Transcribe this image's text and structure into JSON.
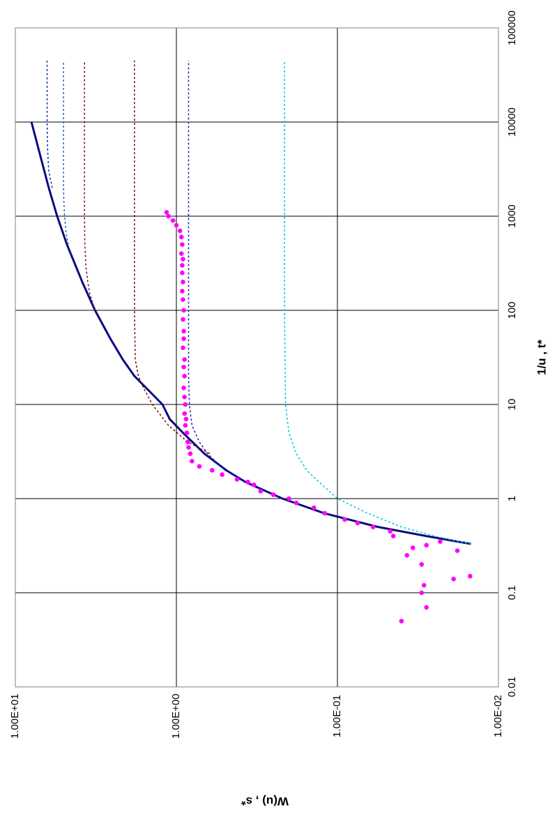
{
  "chart_data": {
    "type": "scatter",
    "orientation": "rotated 90 degrees clockwise (x axis vertical on right, W(u) axis horizontal on bottom)",
    "title": "",
    "xlabel": "1/u , t*",
    "ylabel": "W(u) , s*",
    "x_scale": "log",
    "y_scale": "log",
    "xlim": [
      0.01,
      100000
    ],
    "ylim": [
      0.01,
      10
    ],
    "x_tick_labels": [
      "0.01",
      "0.1",
      "1",
      "10",
      "100",
      "1000",
      "10000",
      "100000"
    ],
    "y_tick_labels": [
      "1.00E-02",
      "1.00E-01",
      "1.00E+00",
      "1.00E+01"
    ],
    "grid": true,
    "legend": "none",
    "colors": {
      "theis": "#0a0a80",
      "observed": "#ff00ff",
      "type_curves": [
        "#00c8e0",
        "#2020c0",
        "#800000",
        "#800060",
        "#3060d0",
        "#1030a0"
      ]
    },
    "series": [
      {
        "style": "solid",
        "color": "#0a0a80",
        "x": [
          0.33,
          0.4,
          0.5,
          0.7,
          1,
          1.5,
          2,
          3,
          5,
          7,
          10,
          20,
          30,
          50,
          100,
          200,
          500,
          1000,
          2000,
          5000,
          10000
        ],
        "y": [
          0.0148,
          0.028,
          0.056,
          0.121,
          0.219,
          0.372,
          0.49,
          0.67,
          0.91,
          1.1,
          1.22,
          1.82,
          2.15,
          2.57,
          3.2,
          3.84,
          4.78,
          5.5,
          6.2,
          7.14,
          7.94
        ]
      },
      {
        "style": "dotted",
        "color": "#00c8e0",
        "x": [
          0.33,
          0.4,
          0.5,
          0.7,
          1,
          1.5,
          2,
          3,
          5,
          10,
          100,
          1000,
          10000,
          45000
        ],
        "y": [
          0.0148,
          0.025,
          0.04,
          0.065,
          0.1,
          0.13,
          0.155,
          0.18,
          0.2,
          0.21,
          0.213,
          0.213,
          0.213,
          0.213
        ]
      },
      {
        "style": "dotted",
        "color": "#2020c0",
        "x": [
          1,
          1.5,
          2,
          3,
          4,
          6,
          10,
          20,
          100,
          1000,
          10000,
          45000
        ],
        "y": [
          0.219,
          0.372,
          0.5,
          0.64,
          0.72,
          0.8,
          0.83,
          0.84,
          0.84,
          0.84,
          0.84,
          0.84
        ]
      },
      {
        "style": "dotted",
        "color": "#800000",
        "x": [
          3,
          4,
          6,
          10,
          15,
          20,
          30,
          100,
          1000,
          10000,
          45000
        ],
        "y": [
          0.62,
          0.85,
          1.12,
          1.41,
          1.6,
          1.72,
          1.8,
          1.82,
          1.82,
          1.82,
          1.82
        ]
      },
      {
        "style": "dotted",
        "color": "#800060",
        "x": [
          100,
          150,
          200,
          300,
          500,
          1000,
          2000,
          5000,
          10000,
          45000
        ],
        "y": [
          3.2,
          3.45,
          3.55,
          3.65,
          3.7,
          3.72,
          3.72,
          3.72,
          3.72,
          3.72
        ]
      },
      {
        "style": "dotted",
        "color": "#3060d0",
        "x": [
          500,
          700,
          1000,
          1500,
          2000,
          3000,
          5000,
          10000,
          45000
        ],
        "y": [
          4.7,
          4.85,
          4.95,
          5.0,
          5.02,
          5.02,
          5.02,
          5.02,
          5.02
        ]
      },
      {
        "style": "dotted",
        "color": "#1030a0",
        "x": [
          2000,
          3000,
          5000,
          10000,
          45000
        ],
        "y": [
          5.9,
          6.2,
          6.3,
          6.35,
          6.35
        ]
      },
      {
        "style": "markers",
        "color": "#ff00ff",
        "x": [
          0.05,
          0.07,
          0.1,
          0.12,
          0.14,
          0.15,
          0.2,
          0.25,
          0.28,
          0.3,
          0.32,
          0.35,
          0.4,
          0.45,
          0.5,
          0.55,
          0.6,
          0.7,
          0.8,
          0.9,
          1,
          1.1,
          1.2,
          1.4,
          1.5,
          1.6,
          1.8,
          2,
          2.2,
          2.5,
          3,
          3.5,
          4,
          5,
          6,
          7,
          8,
          10,
          12,
          15,
          20,
          25,
          30,
          40,
          50,
          60,
          80,
          100,
          130,
          160,
          200,
          250,
          300,
          350,
          400,
          500,
          600,
          700,
          800,
          900,
          1000,
          1100
        ],
        "y": [
          0.04,
          0.028,
          0.03,
          0.029,
          0.019,
          0.015,
          0.03,
          0.037,
          0.018,
          0.034,
          0.028,
          0.023,
          0.045,
          0.047,
          0.06,
          0.075,
          0.09,
          0.12,
          0.14,
          0.18,
          0.2,
          0.25,
          0.3,
          0.33,
          0.36,
          0.42,
          0.52,
          0.6,
          0.72,
          0.8,
          0.82,
          0.84,
          0.85,
          0.86,
          0.88,
          0.87,
          0.89,
          0.88,
          0.89,
          0.9,
          0.89,
          0.9,
          0.89,
          0.91,
          0.9,
          0.9,
          0.91,
          0.9,
          0.91,
          0.92,
          0.91,
          0.92,
          0.92,
          0.91,
          0.93,
          0.92,
          0.93,
          0.95,
          1.0,
          1.05,
          1.12,
          1.15
        ]
      }
    ]
  }
}
